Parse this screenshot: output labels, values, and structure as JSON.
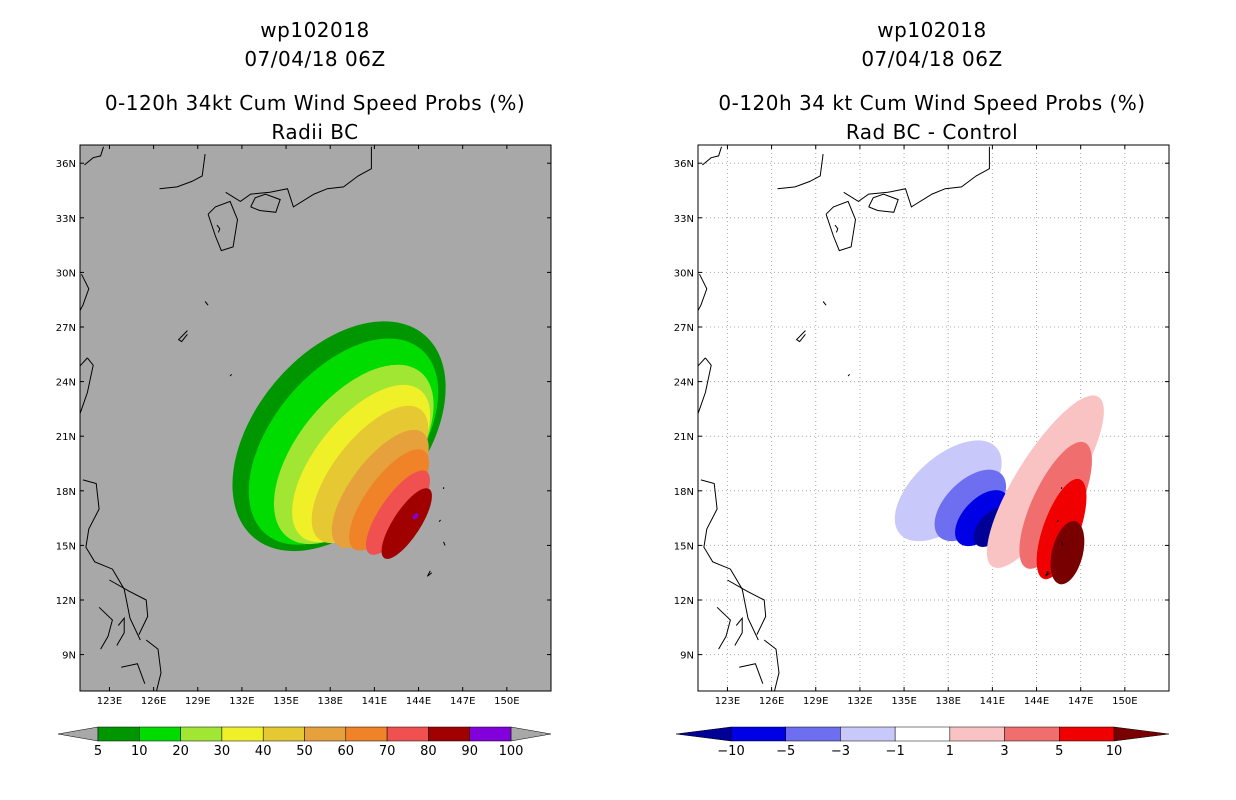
{
  "chart_data": [
    {
      "type": "heatmap",
      "id": "left",
      "title_line1": "wp102018",
      "title_line2": "07/04/18 06Z",
      "title_line3": "0-120h 34kt Cum Wind Speed Probs (%)",
      "title_line4": "Radii BC",
      "x_ticks": [
        "123E",
        "126E",
        "129E",
        "132E",
        "135E",
        "138E",
        "141E",
        "144E",
        "147E",
        "150E"
      ],
      "y_ticks": [
        "36N",
        "33N",
        "30N",
        "27N",
        "24N",
        "21N",
        "18N",
        "15N",
        "12N",
        "9N"
      ],
      "xlim": [
        121,
        153
      ],
      "ylim": [
        7,
        37
      ],
      "colorbar_levels": [
        "5",
        "10",
        "20",
        "30",
        "40",
        "50",
        "60",
        "70",
        "80",
        "90",
        "100"
      ],
      "colorbar_colors": [
        "#009600",
        "#00dc00",
        "#a0e632",
        "#f0f028",
        "#e6c832",
        "#e6a03c",
        "#f08228",
        "#f05050",
        "#a00000",
        "#8200dc"
      ],
      "below_min_color": "#a8a8a8",
      "contours": [
        {
          "level": "5",
          "color": "#009600",
          "center": [
            138.6,
            21.0
          ],
          "halfwidth": 9.0,
          "halfheight": 4.6,
          "angle": -50
        },
        {
          "level": "10",
          "color": "#00dc00",
          "center": [
            138.9,
            20.7
          ],
          "halfwidth": 8.2,
          "halfheight": 3.9,
          "angle": -50
        },
        {
          "level": "20",
          "color": "#a0e632",
          "center": [
            139.6,
            20.0
          ],
          "halfwidth": 7.2,
          "halfheight": 3.1,
          "angle": -51
        },
        {
          "level": "30",
          "color": "#f0f028",
          "center": [
            140.1,
            19.5
          ],
          "halfwidth": 6.4,
          "halfheight": 2.5,
          "angle": -51
        },
        {
          "level": "40",
          "color": "#e6c832",
          "center": [
            140.7,
            18.9
          ],
          "halfwidth": 5.6,
          "halfheight": 2.0,
          "angle": -52
        },
        {
          "level": "50",
          "color": "#e6a03c",
          "center": [
            141.4,
            18.1
          ],
          "halfwidth": 4.8,
          "halfheight": 1.6,
          "angle": -53
        },
        {
          "level": "60",
          "color": "#f08228",
          "center": [
            142.0,
            17.5
          ],
          "halfwidth": 4.1,
          "halfheight": 1.25,
          "angle": -54
        },
        {
          "level": "70",
          "color": "#f05050",
          "center": [
            142.6,
            16.8
          ],
          "halfwidth": 3.4,
          "halfheight": 0.95,
          "angle": -55
        },
        {
          "level": "80",
          "color": "#a00000",
          "center": [
            143.2,
            16.2
          ],
          "halfwidth": 2.8,
          "halfheight": 0.75,
          "angle": -57
        },
        {
          "level": "90",
          "color": "#8200dc",
          "center": [
            143.8,
            16.6
          ],
          "halfwidth": 0.25,
          "halfheight": 0.12,
          "angle": -55
        }
      ]
    },
    {
      "type": "heatmap",
      "id": "right",
      "title_line1": "wp102018",
      "title_line2": "07/04/18 06Z",
      "title_line3": "0-120h 34 kt Cum Wind Speed Probs (%)",
      "title_line4": "Rad BC - Control",
      "x_ticks": [
        "123E",
        "126E",
        "129E",
        "132E",
        "135E",
        "138E",
        "141E",
        "144E",
        "147E",
        "150E"
      ],
      "y_ticks": [
        "36N",
        "33N",
        "30N",
        "27N",
        "24N",
        "21N",
        "18N",
        "15N",
        "12N",
        "9N"
      ],
      "xlim": [
        121,
        153
      ],
      "ylim": [
        7,
        37
      ],
      "grid": true,
      "colorbar_levels": [
        "-10",
        "-5",
        "-3",
        "-1",
        "1",
        "3",
        "5",
        "10"
      ],
      "colorbar_colors": [
        "#000096",
        "#0000e6",
        "#6e6ef0",
        "#c8c8fa",
        "#ffffff",
        "#fac3c3",
        "#f06e6e",
        "#f00000",
        "#780000"
      ],
      "contours": [
        {
          "level": "-1",
          "color": "#c8c8fa",
          "center": [
            138.0,
            18.0
          ],
          "halfwidth": 4.4,
          "halfheight": 1.9,
          "angle": -42
        },
        {
          "level": "-3",
          "color": "#6e6ef0",
          "center": [
            139.5,
            17.2
          ],
          "halfwidth": 3.0,
          "halfheight": 1.35,
          "angle": -45
        },
        {
          "level": "-5",
          "color": "#0000e6",
          "center": [
            140.3,
            16.5
          ],
          "halfwidth": 2.3,
          "halfheight": 1.05,
          "angle": -47
        },
        {
          "level": "-10",
          "color": "#000096",
          "center": [
            141.0,
            16.0
          ],
          "halfwidth": 1.6,
          "halfheight": 0.75,
          "angle": -48
        },
        {
          "level": "1",
          "color": "#fac3c3",
          "center": [
            144.6,
            18.5
          ],
          "halfwidth": 6.8,
          "halfheight": 1.6,
          "angle": -58
        },
        {
          "level": "3",
          "color": "#f06e6e",
          "center": [
            145.3,
            17.2
          ],
          "halfwidth": 4.7,
          "halfheight": 1.3,
          "angle": -65
        },
        {
          "level": "5",
          "color": "#f00000",
          "center": [
            145.7,
            15.9
          ],
          "halfwidth": 3.6,
          "halfheight": 1.0,
          "angle": -70
        },
        {
          "level": "10",
          "color": "#780000",
          "center": [
            146.1,
            14.6
          ],
          "halfwidth": 2.2,
          "halfheight": 0.85,
          "angle": -76
        }
      ]
    }
  ]
}
